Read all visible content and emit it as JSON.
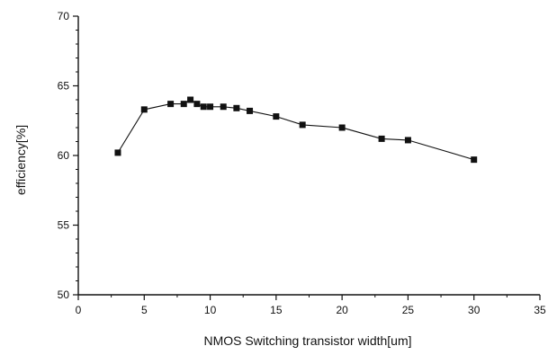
{
  "chart_data": {
    "type": "line",
    "title": "",
    "xlabel": "NMOS Switching transistor width[um]",
    "ylabel": "efficiency[%]",
    "xlim": [
      0,
      35
    ],
    "ylim": [
      50,
      70
    ],
    "xticks": [
      0,
      5,
      10,
      15,
      20,
      25,
      30,
      35
    ],
    "yticks": [
      50,
      55,
      60,
      65,
      70
    ],
    "grid": false,
    "legend": "none",
    "series": [
      {
        "marker": "square",
        "color": "#111111",
        "points": [
          {
            "x": 3,
            "y": 60.2
          },
          {
            "x": 5,
            "y": 63.3
          },
          {
            "x": 7,
            "y": 63.7
          },
          {
            "x": 8,
            "y": 63.7
          },
          {
            "x": 8.5,
            "y": 64.0
          },
          {
            "x": 9,
            "y": 63.7
          },
          {
            "x": 9.5,
            "y": 63.5
          },
          {
            "x": 10,
            "y": 63.5
          },
          {
            "x": 11,
            "y": 63.5
          },
          {
            "x": 12,
            "y": 63.4
          },
          {
            "x": 13,
            "y": 63.2
          },
          {
            "x": 15,
            "y": 62.8
          },
          {
            "x": 17,
            "y": 62.2
          },
          {
            "x": 20,
            "y": 62.0
          },
          {
            "x": 23,
            "y": 61.2
          },
          {
            "x": 25,
            "y": 61.1
          },
          {
            "x": 30,
            "y": 59.7
          }
        ]
      }
    ]
  }
}
